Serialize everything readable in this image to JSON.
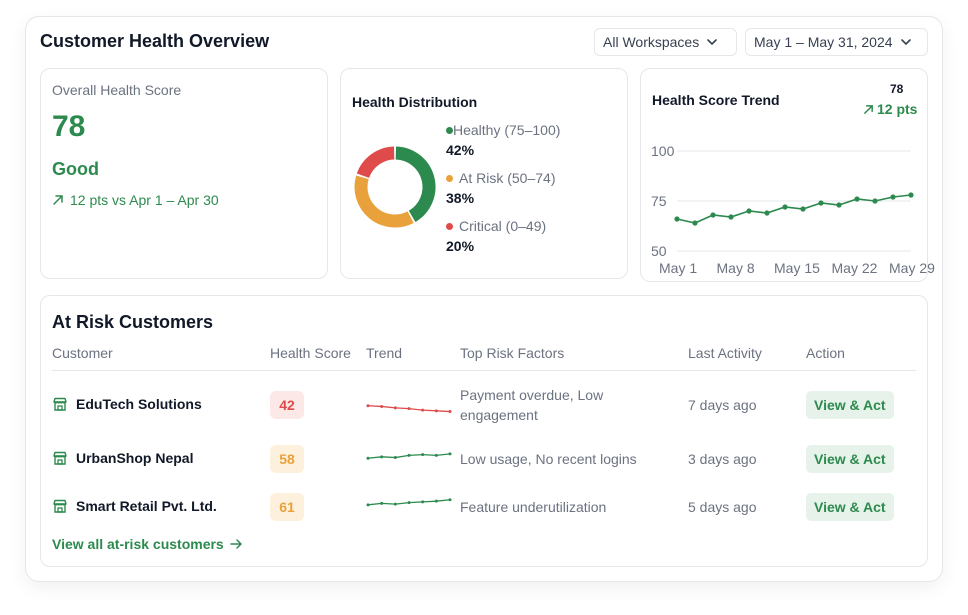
{
  "header": {
    "title": "Customer Health Overview",
    "workspace_filter": "All Workspaces",
    "date_filter": "May 1 – May 31, 2024"
  },
  "overall": {
    "label": "Overall Health Score",
    "score": "78",
    "status": "Good",
    "change": "12 pts vs Apr 1 – Apr 30"
  },
  "distribution": {
    "title": "Health Distribution",
    "segments": [
      {
        "label": "Healthy (75–100)",
        "pct_label": "42%",
        "value": 42,
        "color": "#2d8a4e"
      },
      {
        "label": "At Risk (50–74)",
        "pct_label": "38%",
        "value": 38,
        "color": "#e9a23b"
      },
      {
        "label": "Critical (0–49)",
        "pct_label": "20%",
        "value": 20,
        "color": "#df4b4b"
      }
    ]
  },
  "trend": {
    "title": "Health Score Trend",
    "score": "78",
    "change": "12 pts"
  },
  "chart_data": {
    "type": "line",
    "title": "Health Score Trend",
    "x_tick_labels": [
      "May 1",
      "May 8",
      "May 15",
      "May 22",
      "May 29"
    ],
    "y_tick_labels": [
      "100",
      "75",
      "50"
    ],
    "ylim": [
      50,
      100
    ],
    "grid": true,
    "series": [
      {
        "values": [
          66,
          64,
          68,
          67,
          70,
          69,
          72,
          71,
          74,
          73,
          76,
          75,
          77,
          78
        ]
      }
    ]
  },
  "at_risk": {
    "title": "At Risk Customers",
    "columns": [
      "Customer",
      "Health Score",
      "Trend",
      "Top Risk Factors",
      "Last Activity",
      "Action"
    ],
    "rows": [
      {
        "customer": "EduTech Solutions",
        "score": "42",
        "score_level": "critical",
        "trend": [
          50,
          49,
          47,
          46,
          44,
          43,
          42
        ],
        "risk": "Payment overdue, Low engagement",
        "activity": "7 days ago",
        "action": "View & Act"
      },
      {
        "customer": "UrbanShop Nepal",
        "score": "58",
        "score_level": "risk",
        "trend": [
          52,
          54,
          53,
          56,
          57,
          56,
          58
        ],
        "risk": "Low usage, No recent logins",
        "activity": "3 days ago",
        "action": "View & Act"
      },
      {
        "customer": "Smart Retail Pvt. Ltd.",
        "score": "61",
        "score_level": "risk",
        "trend": [
          54,
          56,
          55,
          57,
          58,
          59,
          61
        ],
        "risk": "Feature underutilization",
        "activity": "5 days ago",
        "action": "View & Act"
      }
    ],
    "view_all": "View all at-risk customers"
  },
  "colors": {
    "accent": "#2d8a4e",
    "critical": "#df4b4b",
    "risk": "#e9a23b",
    "critical_bg": "#fde8e8",
    "risk_bg": "#fdf0dd"
  }
}
